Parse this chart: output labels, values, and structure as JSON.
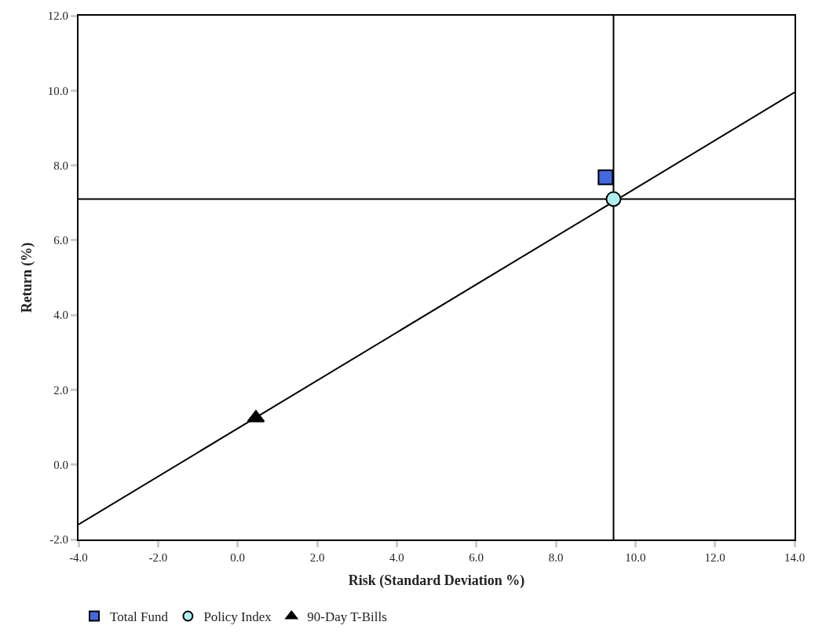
{
  "chart_data": {
    "type": "scatter",
    "xlabel": "Risk (Standard Deviation %)",
    "ylabel": "Return (%)",
    "xlim": [
      -4,
      14
    ],
    "ylim": [
      -2,
      12
    ],
    "xticks": [
      {
        "value": -4,
        "label": "-4.0"
      },
      {
        "value": -2,
        "label": "-2.0"
      },
      {
        "value": 0,
        "label": "0.0"
      },
      {
        "value": 2,
        "label": "2.0"
      },
      {
        "value": 4,
        "label": "4.0"
      },
      {
        "value": 6,
        "label": "6.0"
      },
      {
        "value": 8,
        "label": "8.0"
      },
      {
        "value": 10,
        "label": "10.0"
      },
      {
        "value": 12,
        "label": "12.0"
      },
      {
        "value": 14,
        "label": "14.0"
      }
    ],
    "yticks": [
      {
        "value": -2,
        "label": "-2.0"
      },
      {
        "value": 0,
        "label": "0.0"
      },
      {
        "value": 2,
        "label": "2.0"
      },
      {
        "value": 4,
        "label": "4.0"
      },
      {
        "value": 6,
        "label": "6.0"
      },
      {
        "value": 8,
        "label": "8.0"
      },
      {
        "value": 10,
        "label": "10.0"
      },
      {
        "value": 12,
        "label": "12.0"
      }
    ],
    "grid": false,
    "legend": "bottom",
    "series": [
      {
        "type": "line",
        "color": "#000000",
        "x": [
          -4,
          14
        ],
        "values": [
          -1.6,
          9.95
        ],
        "marker": "none"
      },
      {
        "name": "Total Fund",
        "color": "#4169e1",
        "x": [
          9.25
        ],
        "values": [
          7.68
        ],
        "marker": "square"
      },
      {
        "name": "Policy Index",
        "color": "#aeeeee",
        "x": [
          9.45
        ],
        "values": [
          7.1
        ],
        "marker": "circle"
      },
      {
        "name": "90-Day T-Bills",
        "color": "#000000",
        "x": [
          0.46
        ],
        "values": [
          1.25
        ],
        "marker": "triangle"
      }
    ],
    "ref_lines": [
      {
        "axis": "x",
        "value": 9.45,
        "color": "#000000"
      },
      {
        "axis": "y",
        "value": 7.1,
        "color": "#000000"
      }
    ]
  }
}
